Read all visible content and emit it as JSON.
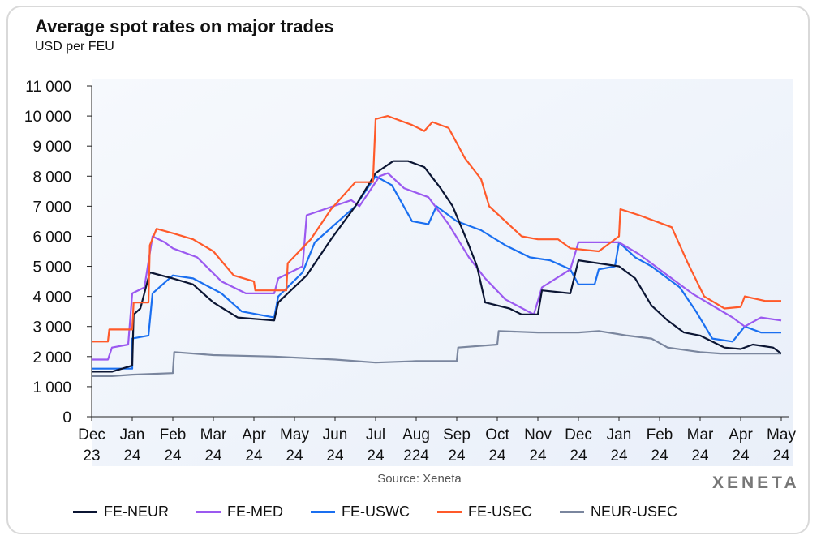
{
  "chart_data": {
    "type": "line",
    "title": "Average spot rates on major trades",
    "subtitle": "USD per FEU",
    "source": "Source: Xeneta",
    "logo": "XENETA",
    "ylim": [
      0,
      11000
    ],
    "yticks": [
      "0",
      "1 000",
      "2 000",
      "3 000",
      "4 000",
      "5 000",
      "6 000",
      "7 000",
      "8 000",
      "9 000",
      "10 000",
      "11 000"
    ],
    "ytick_values": [
      0,
      1000,
      2000,
      3000,
      4000,
      5000,
      6000,
      7000,
      8000,
      9000,
      10000,
      11000
    ],
    "xlim": [
      "2023-12-01",
      "2025-05-01"
    ],
    "xticks": [
      [
        "Dec",
        "23"
      ],
      [
        "Jan",
        "24"
      ],
      [
        "Feb",
        "24"
      ],
      [
        "Mar",
        "24"
      ],
      [
        "Apr",
        "24"
      ],
      [
        "May",
        "24"
      ],
      [
        "Jun",
        "24"
      ],
      [
        "Jul",
        "24"
      ],
      [
        "Aug",
        "224"
      ],
      [
        "Sep",
        "24"
      ],
      [
        "Oct",
        "24"
      ],
      [
        "Nov",
        "24"
      ],
      [
        "Dec",
        "24"
      ],
      [
        "Jan",
        "24"
      ],
      [
        "Feb",
        "24"
      ],
      [
        "Mar",
        "24"
      ],
      [
        "Apr",
        "24"
      ],
      [
        "May",
        "24"
      ]
    ],
    "xtick_dates": [
      "2023-12-01",
      "2024-01-01",
      "2024-02-01",
      "2024-03-01",
      "2024-04-01",
      "2024-05-01",
      "2024-06-01",
      "2024-07-01",
      "2024-08-01",
      "2024-09-01",
      "2024-10-01",
      "2024-11-01",
      "2024-12-01",
      "2025-01-01",
      "2025-02-01",
      "2025-03-01",
      "2025-04-01",
      "2025-05-01"
    ],
    "grid": false,
    "legend_position": "bottom",
    "series": [
      {
        "name": "FE-NEUR",
        "color": "#0b1533",
        "points": [
          [
            "2023-12-01",
            1500
          ],
          [
            "2023-12-16",
            1500
          ],
          [
            "2024-01-01",
            1700
          ],
          [
            "2024-01-02",
            3400
          ],
          [
            "2024-01-07",
            3600
          ],
          [
            "2024-01-14",
            4800
          ],
          [
            "2024-02-01",
            4600
          ],
          [
            "2024-02-16",
            4400
          ],
          [
            "2024-03-01",
            3800
          ],
          [
            "2024-03-19",
            3300
          ],
          [
            "2024-04-16",
            3200
          ],
          [
            "2024-04-19",
            3800
          ],
          [
            "2024-05-10",
            4700
          ],
          [
            "2024-05-28",
            5900
          ],
          [
            "2024-06-16",
            7000
          ],
          [
            "2024-07-01",
            8100
          ],
          [
            "2024-07-14",
            8500
          ],
          [
            "2024-07-25",
            8500
          ],
          [
            "2024-08-07",
            8300
          ],
          [
            "2024-08-19",
            7600
          ],
          [
            "2024-08-28",
            7000
          ],
          [
            "2024-09-10",
            5700
          ],
          [
            "2024-09-16",
            5000
          ],
          [
            "2024-09-22",
            3800
          ],
          [
            "2024-10-10",
            3600
          ],
          [
            "2024-10-19",
            3400
          ],
          [
            "2024-11-01",
            3400
          ],
          [
            "2024-11-04",
            4200
          ],
          [
            "2024-11-25",
            4100
          ],
          [
            "2024-12-01",
            5200
          ],
          [
            "2025-01-01",
            5000
          ],
          [
            "2025-01-13",
            4600
          ],
          [
            "2025-01-25",
            3700
          ],
          [
            "2025-02-07",
            3200
          ],
          [
            "2025-02-19",
            2800
          ],
          [
            "2025-03-01",
            2700
          ],
          [
            "2025-03-19",
            2300
          ],
          [
            "2025-04-01",
            2250
          ],
          [
            "2025-04-10",
            2400
          ],
          [
            "2025-04-25",
            2300
          ],
          [
            "2025-05-01",
            2100
          ]
        ]
      },
      {
        "name": "FE-MED",
        "color": "#9b59f0",
        "points": [
          [
            "2023-12-01",
            1900
          ],
          [
            "2023-12-13",
            1900
          ],
          [
            "2023-12-16",
            2300
          ],
          [
            "2023-12-28",
            2400
          ],
          [
            "2024-01-01",
            4100
          ],
          [
            "2024-01-10",
            4300
          ],
          [
            "2024-01-16",
            6000
          ],
          [
            "2024-01-25",
            5800
          ],
          [
            "2024-02-01",
            5600
          ],
          [
            "2024-02-19",
            5300
          ],
          [
            "2024-03-07",
            4500
          ],
          [
            "2024-03-25",
            4100
          ],
          [
            "2024-04-16",
            4100
          ],
          [
            "2024-04-19",
            4600
          ],
          [
            "2024-05-07",
            5000
          ],
          [
            "2024-05-10",
            6700
          ],
          [
            "2024-06-13",
            7200
          ],
          [
            "2024-06-19",
            7000
          ],
          [
            "2024-07-04",
            8000
          ],
          [
            "2024-07-10",
            8100
          ],
          [
            "2024-07-22",
            7600
          ],
          [
            "2024-08-10",
            7300
          ],
          [
            "2024-08-25",
            6400
          ],
          [
            "2024-09-10",
            5300
          ],
          [
            "2024-09-22",
            4600
          ],
          [
            "2024-10-07",
            3900
          ],
          [
            "2024-10-28",
            3400
          ],
          [
            "2024-11-04",
            4300
          ],
          [
            "2024-11-25",
            4900
          ],
          [
            "2024-12-01",
            5800
          ],
          [
            "2025-01-01",
            5800
          ],
          [
            "2025-01-16",
            5400
          ],
          [
            "2025-02-07",
            4700
          ],
          [
            "2025-02-25",
            4100
          ],
          [
            "2025-03-10",
            3700
          ],
          [
            "2025-03-25",
            3300
          ],
          [
            "2025-04-04",
            3000
          ],
          [
            "2025-04-16",
            3300
          ],
          [
            "2025-05-01",
            3200
          ]
        ]
      },
      {
        "name": "FE-USWC",
        "color": "#1a6ff0",
        "points": [
          [
            "2023-12-01",
            1600
          ],
          [
            "2023-12-31",
            1600
          ],
          [
            "2024-01-01",
            2600
          ],
          [
            "2024-01-13",
            2700
          ],
          [
            "2024-01-16",
            4100
          ],
          [
            "2024-02-01",
            4700
          ],
          [
            "2024-02-16",
            4600
          ],
          [
            "2024-03-07",
            4100
          ],
          [
            "2024-03-22",
            3500
          ],
          [
            "2024-04-16",
            3300
          ],
          [
            "2024-04-19",
            4000
          ],
          [
            "2024-05-07",
            4800
          ],
          [
            "2024-05-16",
            5800
          ],
          [
            "2024-06-16",
            7000
          ],
          [
            "2024-07-01",
            8000
          ],
          [
            "2024-07-13",
            7700
          ],
          [
            "2024-07-28",
            6500
          ],
          [
            "2024-08-10",
            6400
          ],
          [
            "2024-08-16",
            7000
          ],
          [
            "2024-09-01",
            6500
          ],
          [
            "2024-09-19",
            6200
          ],
          [
            "2024-10-07",
            5700
          ],
          [
            "2024-10-25",
            5300
          ],
          [
            "2024-11-10",
            5200
          ],
          [
            "2024-11-25",
            4900
          ],
          [
            "2024-12-01",
            4400
          ],
          [
            "2024-12-13",
            4400
          ],
          [
            "2024-12-16",
            4900
          ],
          [
            "2024-12-28",
            5000
          ],
          [
            "2025-01-01",
            5800
          ],
          [
            "2025-01-13",
            5300
          ],
          [
            "2025-01-25",
            5000
          ],
          [
            "2025-02-16",
            4300
          ],
          [
            "2025-02-28",
            3500
          ],
          [
            "2025-03-10",
            2600
          ],
          [
            "2025-03-25",
            2500
          ],
          [
            "2025-04-04",
            3000
          ],
          [
            "2025-04-16",
            2800
          ],
          [
            "2025-05-01",
            2800
          ]
        ]
      },
      {
        "name": "FE-USEC",
        "color": "#ff5a2a",
        "points": [
          [
            "2023-12-01",
            2500
          ],
          [
            "2023-12-13",
            2500
          ],
          [
            "2023-12-14",
            2900
          ],
          [
            "2024-01-01",
            2900
          ],
          [
            "2024-01-02",
            3800
          ],
          [
            "2024-01-13",
            3800
          ],
          [
            "2024-01-14",
            5700
          ],
          [
            "2024-01-19",
            6250
          ],
          [
            "2024-02-01",
            6100
          ],
          [
            "2024-02-16",
            5900
          ],
          [
            "2024-03-01",
            5500
          ],
          [
            "2024-03-16",
            4700
          ],
          [
            "2024-04-01",
            4500
          ],
          [
            "2024-04-02",
            4200
          ],
          [
            "2024-04-25",
            4200
          ],
          [
            "2024-04-26",
            5100
          ],
          [
            "2024-05-13",
            5900
          ],
          [
            "2024-05-28",
            6900
          ],
          [
            "2024-06-16",
            7800
          ],
          [
            "2024-06-29",
            7800
          ],
          [
            "2024-07-01",
            9900
          ],
          [
            "2024-07-10",
            10000
          ],
          [
            "2024-07-28",
            9700
          ],
          [
            "2024-08-07",
            9500
          ],
          [
            "2024-08-13",
            9800
          ],
          [
            "2024-08-25",
            9600
          ],
          [
            "2024-09-07",
            8600
          ],
          [
            "2024-09-19",
            7900
          ],
          [
            "2024-09-25",
            7000
          ],
          [
            "2024-10-07",
            6500
          ],
          [
            "2024-10-19",
            6000
          ],
          [
            "2024-11-01",
            5900
          ],
          [
            "2024-11-16",
            5900
          ],
          [
            "2024-11-25",
            5600
          ],
          [
            "2024-12-16",
            5500
          ],
          [
            "2025-01-01",
            6000
          ],
          [
            "2025-01-02",
            6900
          ],
          [
            "2025-01-16",
            6700
          ],
          [
            "2025-02-10",
            6300
          ],
          [
            "2025-02-22",
            5100
          ],
          [
            "2025-03-04",
            4000
          ],
          [
            "2025-03-19",
            3600
          ],
          [
            "2025-04-01",
            3650
          ],
          [
            "2025-04-04",
            4000
          ],
          [
            "2025-04-19",
            3850
          ],
          [
            "2025-05-01",
            3850
          ]
        ]
      },
      {
        "name": "NEUR-USEC",
        "color": "#7a869e",
        "points": [
          [
            "2023-12-01",
            1350
          ],
          [
            "2023-12-16",
            1350
          ],
          [
            "2024-01-01",
            1400
          ],
          [
            "2024-02-01",
            1450
          ],
          [
            "2024-02-02",
            2150
          ],
          [
            "2024-03-01",
            2050
          ],
          [
            "2024-04-16",
            2000
          ],
          [
            "2024-06-01",
            1900
          ],
          [
            "2024-07-01",
            1800
          ],
          [
            "2024-08-01",
            1850
          ],
          [
            "2024-09-01",
            1850
          ],
          [
            "2024-09-02",
            2300
          ],
          [
            "2024-10-01",
            2400
          ],
          [
            "2024-10-02",
            2850
          ],
          [
            "2024-11-01",
            2800
          ],
          [
            "2024-12-01",
            2800
          ],
          [
            "2024-12-16",
            2850
          ],
          [
            "2025-01-07",
            2700
          ],
          [
            "2025-01-25",
            2600
          ],
          [
            "2025-02-07",
            2300
          ],
          [
            "2025-03-01",
            2150
          ],
          [
            "2025-03-16",
            2100
          ],
          [
            "2025-04-16",
            2100
          ],
          [
            "2025-05-01",
            2100
          ]
        ]
      }
    ]
  }
}
